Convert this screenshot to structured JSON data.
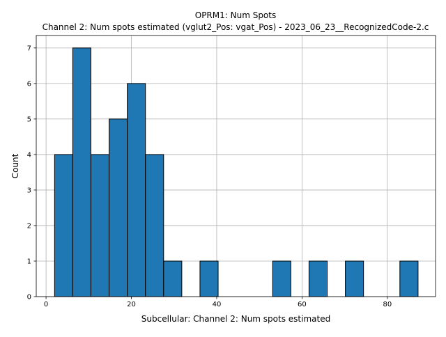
{
  "chart_data": {
    "type": "bar",
    "title": "OPRM1: Num Spots",
    "subtitle": "Channel 2: Num spots estimated (vglut2_Pos: vgat_Pos) - 2023_06_23__RecognizedCode-2.c",
    "xlabel": "Subcellular: Channel 2: Num spots estimated",
    "ylabel": "Count",
    "xlim": [
      -2.3,
      91.3
    ],
    "ylim": [
      0,
      7.35
    ],
    "xticks": [
      0,
      20,
      40,
      60,
      80
    ],
    "yticks": [
      0,
      1,
      2,
      3,
      4,
      5,
      6,
      7
    ],
    "grid": true,
    "bin_edges": [
      2.0,
      6.26,
      10.52,
      14.78,
      19.04,
      23.3,
      27.56,
      31.82,
      36.08,
      40.34,
      44.6,
      48.86,
      53.12,
      57.38,
      61.64,
      65.9,
      70.16,
      74.42,
      78.68,
      82.94,
      87.2
    ],
    "values": [
      4,
      7,
      4,
      5,
      6,
      4,
      1,
      0,
      1,
      0,
      0,
      0,
      1,
      0,
      1,
      0,
      1,
      0,
      0,
      1
    ],
    "bar_color": "#1f77b4",
    "edge_color": "#000000"
  }
}
